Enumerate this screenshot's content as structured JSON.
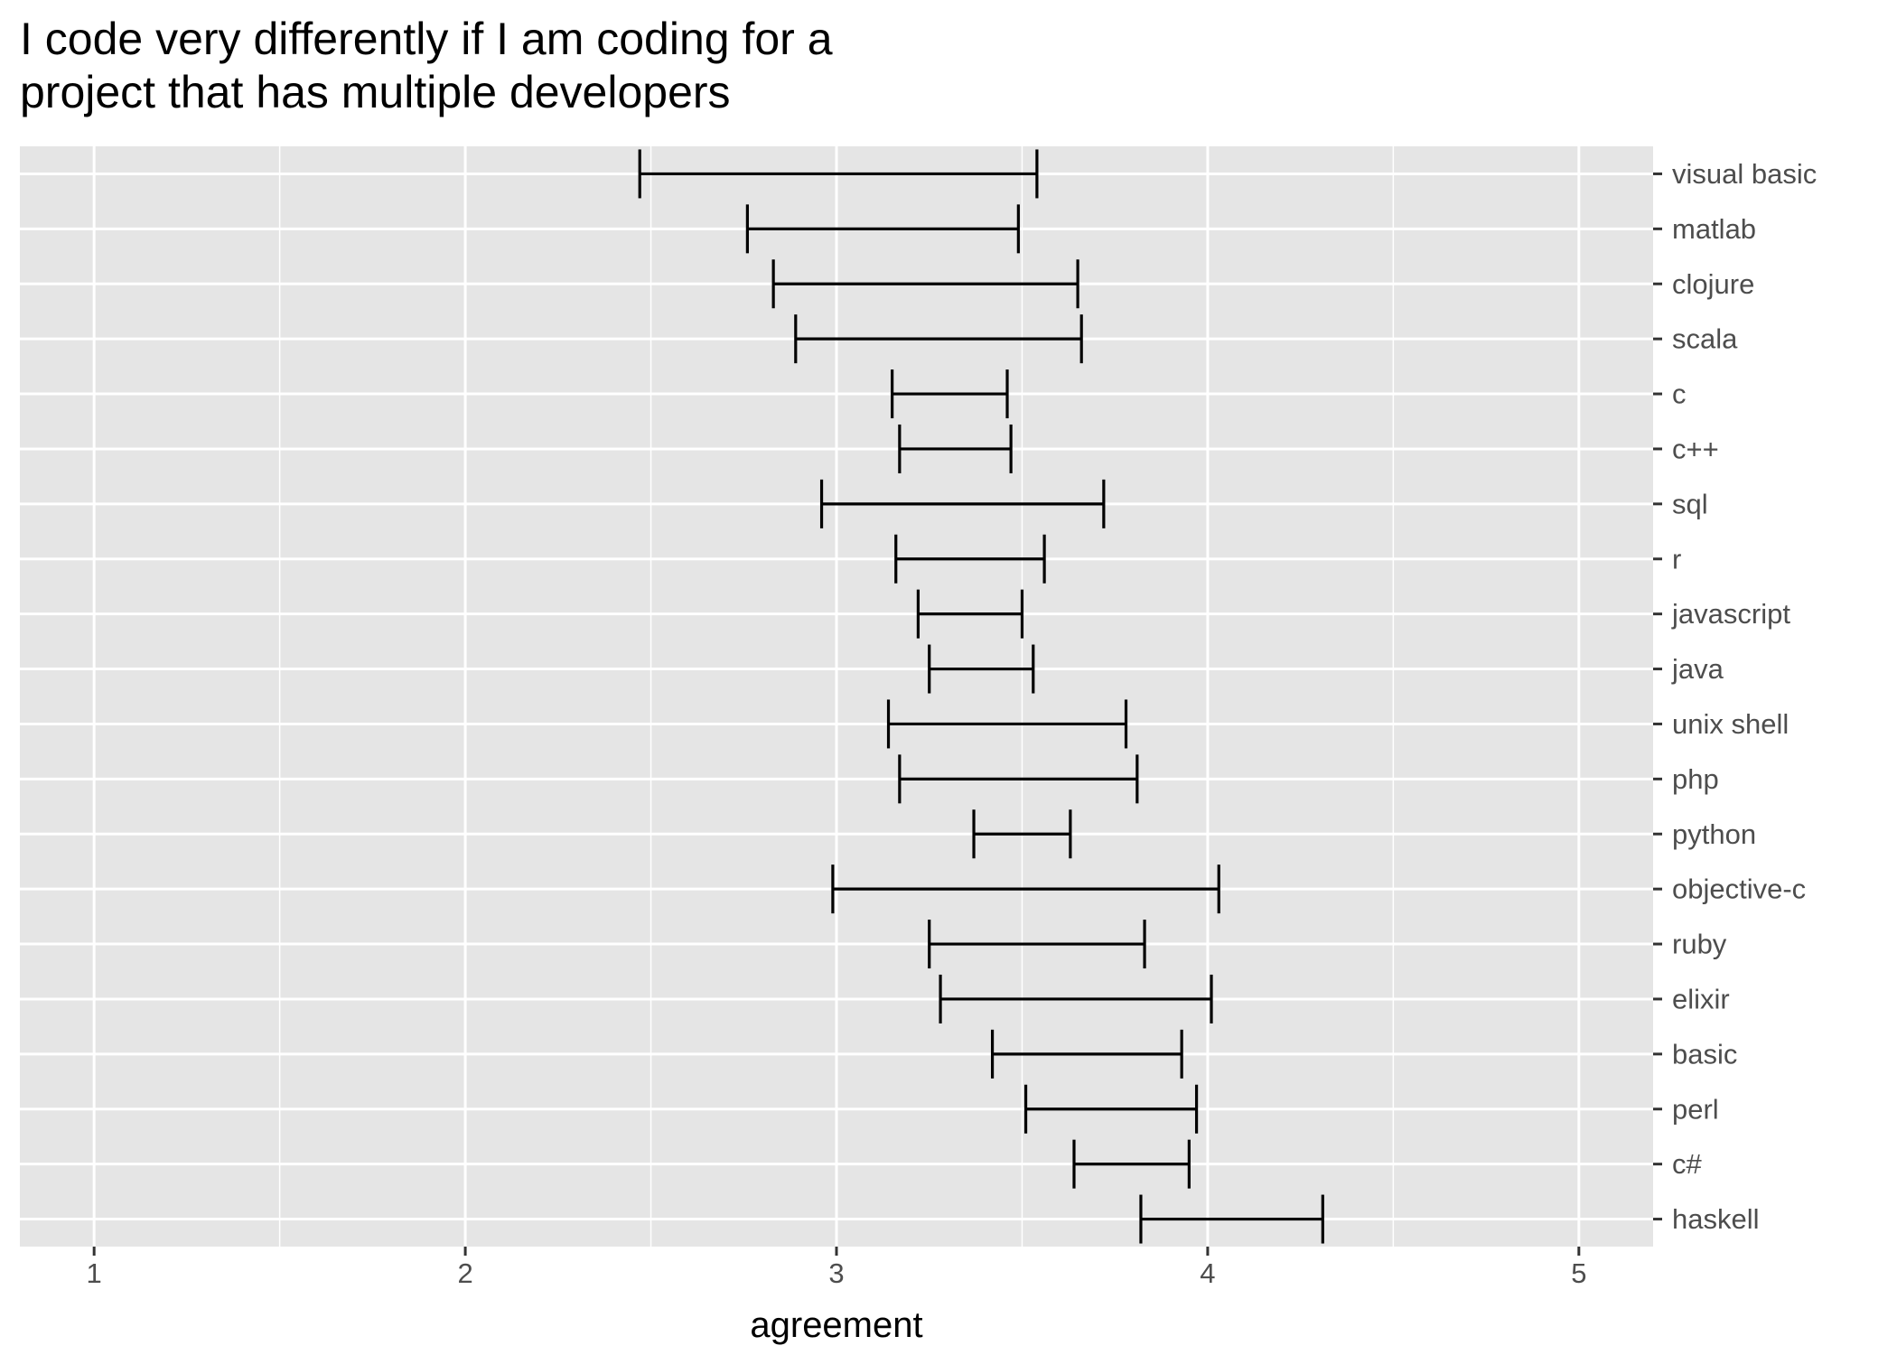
{
  "chart_data": {
    "type": "errorbar",
    "title_lines": [
      "I code very differently if I am coding for a",
      "project that has multiple developers"
    ],
    "xlabel": "agreement",
    "ylabel": "",
    "xlim": [
      0.8,
      5.2
    ],
    "x_ticks": [
      1,
      2,
      3,
      4,
      5
    ],
    "grid": true,
    "y_axis_position": "right",
    "panel_color": "#e5e5e5",
    "categories": [
      "visual basic",
      "matlab",
      "clojure",
      "scala",
      "c",
      "c++",
      "sql",
      "r",
      "javascript",
      "java",
      "unix shell",
      "php",
      "python",
      "objective-c",
      "ruby",
      "elixir",
      "basic",
      "perl",
      "c#",
      "haskell"
    ],
    "lower": [
      2.47,
      2.76,
      2.83,
      2.89,
      3.15,
      3.17,
      2.96,
      3.16,
      3.22,
      3.25,
      3.14,
      3.17,
      3.37,
      2.99,
      3.25,
      3.28,
      3.42,
      3.51,
      3.64,
      3.82
    ],
    "upper": [
      3.54,
      3.49,
      3.65,
      3.66,
      3.46,
      3.47,
      3.72,
      3.56,
      3.5,
      3.53,
      3.78,
      3.81,
      3.63,
      4.03,
      3.83,
      4.01,
      3.93,
      3.97,
      3.95,
      4.31
    ]
  }
}
